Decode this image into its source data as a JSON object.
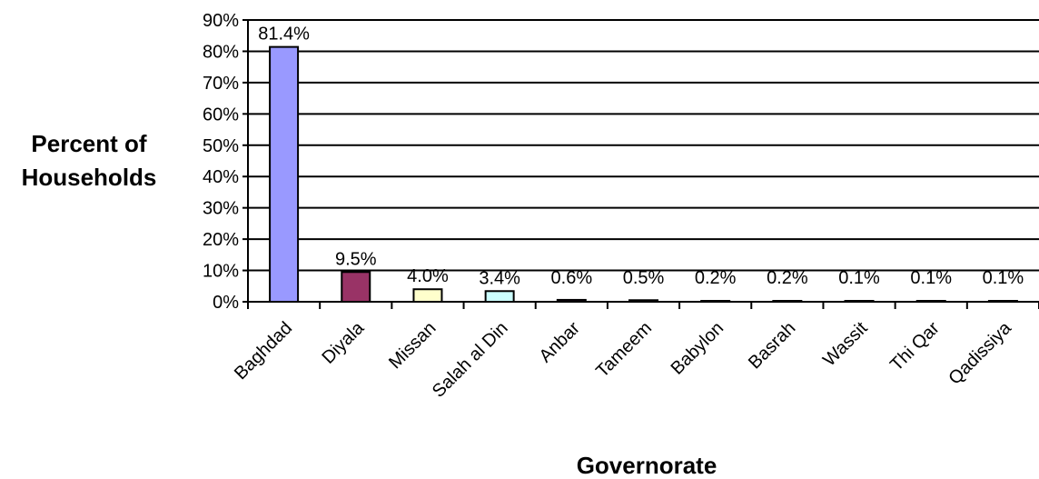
{
  "chart_data": {
    "type": "bar",
    "title": "",
    "xlabel": "Governorate",
    "ylabel_lines": [
      "Percent of",
      "Households"
    ],
    "categories": [
      "Baghdad",
      "Diyala",
      "Missan",
      "Salah al Din",
      "Anbar",
      "Tameem",
      "Babylon",
      "Basrah",
      "Wassit",
      "Thi Qar",
      "Qadissiya"
    ],
    "values": [
      81.4,
      9.5,
      4.0,
      3.4,
      0.6,
      0.5,
      0.2,
      0.2,
      0.1,
      0.1,
      0.1
    ],
    "value_labels": [
      "81.4%",
      "9.5%",
      "4.0%",
      "3.4%",
      "0.6%",
      "0.5%",
      "0.2%",
      "0.2%",
      "0.1%",
      "0.1%",
      "0.1%"
    ],
    "ylim": [
      0,
      90
    ],
    "yticks": [
      0,
      10,
      20,
      30,
      40,
      50,
      60,
      70,
      80,
      90
    ],
    "ytick_labels": [
      "0%",
      "10%",
      "20%",
      "30%",
      "40%",
      "50%",
      "60%",
      "70%",
      "80%",
      "90%"
    ],
    "grid": true,
    "legend": "none",
    "bar_colors": [
      "#9999ff",
      "#993366",
      "#ffffcc",
      "#ccffff",
      "#660066",
      "#ff8080",
      "#0066cc",
      "#ccccff",
      "#000080",
      "#ff00ff",
      "#ffff00"
    ]
  }
}
